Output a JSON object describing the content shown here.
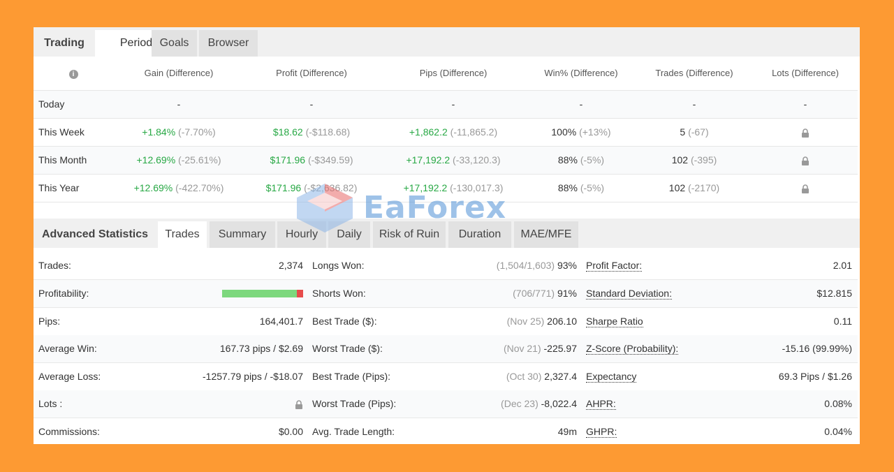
{
  "top_tabs": [
    "Trading",
    "Periods",
    "Goals",
    "Browser"
  ],
  "periods": {
    "info_icon": "info-icon",
    "headers": [
      "Gain (Difference)",
      "Profit (Difference)",
      "Pips (Difference)",
      "Win% (Difference)",
      "Trades (Difference)",
      "Lots (Difference)"
    ],
    "rows": [
      {
        "label": "Today",
        "gain": "-",
        "gain_diff": "",
        "profit": "-",
        "profit_diff": "",
        "pips": "-",
        "pips_diff": "",
        "win": "-",
        "win_diff": "",
        "trades": "-",
        "trades_diff": "",
        "lots": "-"
      },
      {
        "label": "This Week",
        "gain": "+1.84%",
        "gain_diff": "(-7.70%)",
        "profit": "$18.62",
        "profit_diff": "(-$118.68)",
        "pips": "+1,862.2",
        "pips_diff": "(-11,865.2)",
        "win": "100%",
        "win_diff": "(+13%)",
        "trades": "5",
        "trades_diff": "(-67)",
        "lots": "lock"
      },
      {
        "label": "This Month",
        "gain": "+12.69%",
        "gain_diff": "(-25.61%)",
        "profit": "$171.96",
        "profit_diff": "(-$349.59)",
        "pips": "+17,192.2",
        "pips_diff": "(-33,120.3)",
        "win": "88%",
        "win_diff": "(-5%)",
        "trades": "102",
        "trades_diff": "(-395)",
        "lots": "lock"
      },
      {
        "label": "This Year",
        "gain": "+12.69%",
        "gain_diff": "(-422.70%)",
        "profit": "$171.96",
        "profit_diff": "(-$2,636.82)",
        "pips": "+17,192.2",
        "pips_diff": "(-130,017.3)",
        "win": "88%",
        "win_diff": "(-5%)",
        "trades": "102",
        "trades_diff": "(-2170)",
        "lots": "lock"
      }
    ]
  },
  "stats_tabs": {
    "title": "Advanced Statistics",
    "items": [
      "Trades",
      "Summary",
      "Hourly",
      "Daily",
      "Risk of Ruin",
      "Duration",
      "MAE/MFE"
    ]
  },
  "stats": {
    "col1": [
      {
        "label": "Trades:",
        "value": "2,374"
      },
      {
        "label": "Profitability:",
        "value": "",
        "bar_fraction": 0.92
      },
      {
        "label": "Pips:",
        "value": "164,401.7"
      },
      {
        "label": "Average Win:",
        "value": "167.73 pips / $2.69"
      },
      {
        "label": "Average Loss:",
        "value": "-1257.79 pips / -$18.07"
      },
      {
        "label": "Lots :",
        "value": "lock"
      },
      {
        "label": "Commissions:",
        "value": "$0.00"
      }
    ],
    "col2": [
      {
        "label": "Longs Won:",
        "note": "(1,504/1,603)",
        "value": "93%"
      },
      {
        "label": "Shorts Won:",
        "note": "(706/771)",
        "value": "91%"
      },
      {
        "label": "Best Trade ($):",
        "note": "(Nov 25)",
        "value": "206.10"
      },
      {
        "label": "Worst Trade ($):",
        "note": "(Nov 21)",
        "value": "-225.97"
      },
      {
        "label": "Best Trade (Pips):",
        "note": "(Oct 30)",
        "value": "2,327.4"
      },
      {
        "label": "Worst Trade (Pips):",
        "note": "(Dec 23)",
        "value": "-8,022.4"
      },
      {
        "label": "Avg. Trade Length:",
        "note": "",
        "value": "49m"
      }
    ],
    "col3": [
      {
        "label": "Profit Factor:",
        "value": "2.01"
      },
      {
        "label": "Standard Deviation:",
        "value": "$12.815"
      },
      {
        "label": "Sharpe Ratio",
        "value": "0.11"
      },
      {
        "label": "Z-Score (Probability):",
        "value": "-15.16 (99.99%)"
      },
      {
        "label": "Expectancy",
        "value": "69.3 Pips / $1.26"
      },
      {
        "label": "AHPR:",
        "value": "0.08%"
      },
      {
        "label": "GHPR:",
        "value": "0.04%"
      }
    ]
  },
  "watermark": {
    "text": "EaForex"
  },
  "colors": {
    "background": "#fd9a33",
    "positive": "#27a844",
    "muted": "#999999",
    "bar_win": "#7dd87d",
    "bar_loss": "#e74c4c"
  }
}
